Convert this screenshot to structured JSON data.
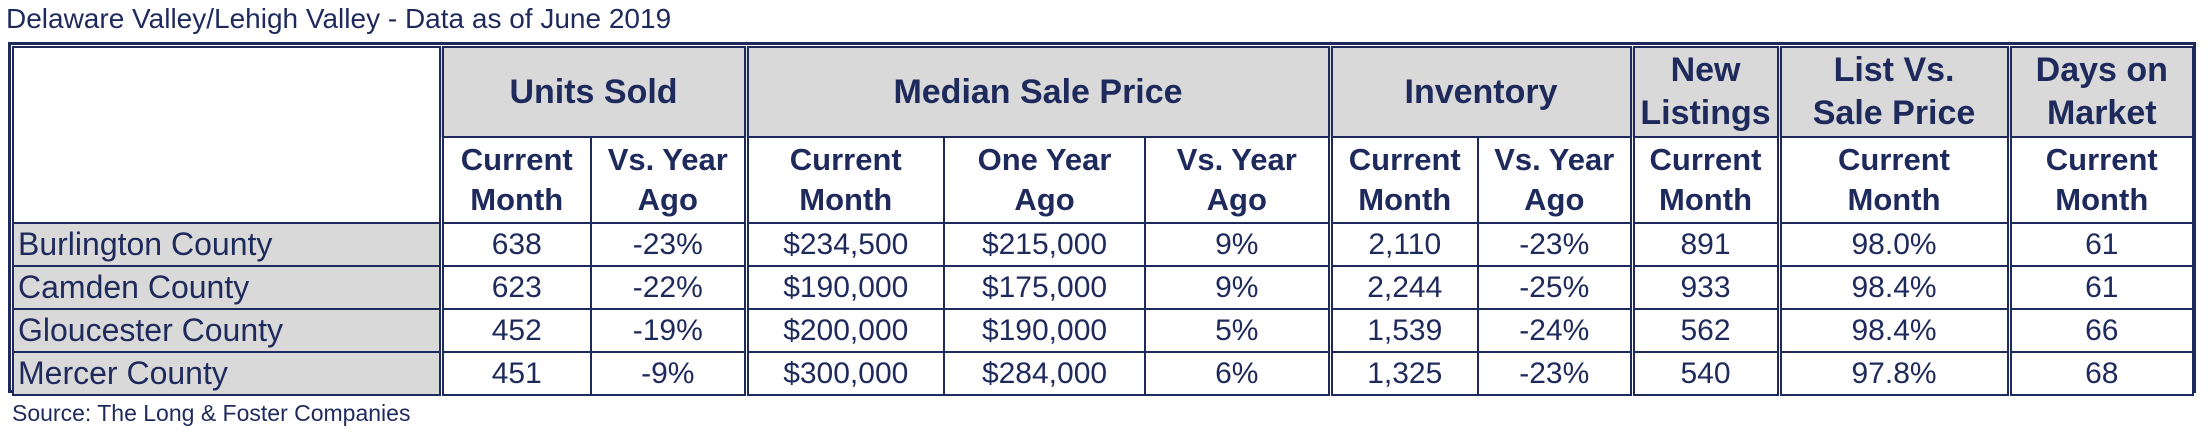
{
  "title": "Delaware Valley/Lehigh Valley - Data as of June 2019",
  "source": "Source: The Long & Foster Companies",
  "groups": {
    "units_sold": "Units Sold",
    "median_sale_price": "Median Sale Price",
    "inventory": "Inventory",
    "new_listings_l1": "New",
    "new_listings_l2": "Listings",
    "list_vs_sale_l1": "List Vs.",
    "list_vs_sale_l2": "Sale Price",
    "days_on_market_l1": "Days on",
    "days_on_market_l2": "Market"
  },
  "subheaders": {
    "current_l1": "Current",
    "current_l2": "Month",
    "vs_year_l1": "Vs. Year",
    "vs_year_l2": "Ago",
    "one_year_l1": "One Year",
    "one_year_l2": "Ago"
  },
  "rows": [
    {
      "county": "Burlington County",
      "units_current": "638",
      "units_vs": "-23%",
      "price_current": "$234,500",
      "price_year_ago": "$215,000",
      "price_vs": "9%",
      "inv_current": "2,110",
      "inv_vs": "-23%",
      "new_listings": "891",
      "list_vs_sale": "98.0%",
      "dom": "61"
    },
    {
      "county": "Camden County",
      "units_current": "623",
      "units_vs": "-22%",
      "price_current": "$190,000",
      "price_year_ago": "$175,000",
      "price_vs": "9%",
      "inv_current": "2,244",
      "inv_vs": "-25%",
      "new_listings": "933",
      "list_vs_sale": "98.4%",
      "dom": "61"
    },
    {
      "county": "Gloucester County",
      "units_current": "452",
      "units_vs": "-19%",
      "price_current": "$200,000",
      "price_year_ago": "$190,000",
      "price_vs": "5%",
      "inv_current": "1,539",
      "inv_vs": "-24%",
      "new_listings": "562",
      "list_vs_sale": "98.4%",
      "dom": "66"
    },
    {
      "county": "Mercer County",
      "units_current": "451",
      "units_vs": "-9%",
      "price_current": "$300,000",
      "price_year_ago": "$284,000",
      "price_vs": "6%",
      "inv_current": "1,325",
      "inv_vs": "-23%",
      "new_listings": "540",
      "list_vs_sale": "97.8%",
      "dom": "68"
    }
  ]
}
